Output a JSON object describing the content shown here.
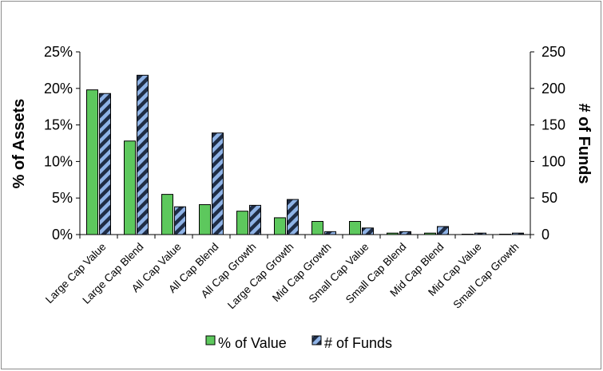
{
  "chart_data": {
    "type": "bar",
    "categories": [
      "Large Cap Value",
      "Large Cap Blend",
      "All Cap Value",
      "All Cap Blend",
      "All Cap Growth",
      "Large Cap Growth",
      "Mid Cap Growth",
      "Small Cap Value",
      "Small Cap Blend",
      "Mid Cap Blend",
      "Mid Cap Value",
      "Small Cap Growth"
    ],
    "series": [
      {
        "name": "% of Value",
        "axis": "left",
        "color": "#5dc85d",
        "values": [
          19.8,
          12.8,
          5.5,
          4.1,
          3.2,
          2.3,
          1.8,
          1.8,
          0.2,
          0.2,
          0.05,
          0.05
        ]
      },
      {
        "name": "# of Funds",
        "axis": "right",
        "pattern": "diagonal-stripes",
        "colors": [
          "#1f2d45",
          "#8fb3e6"
        ],
        "values": [
          193,
          218,
          38,
          139,
          40,
          48,
          4,
          9,
          4,
          11,
          2,
          2
        ]
      }
    ],
    "ylabel": "% of Assets",
    "y2label": "# of Funds",
    "ylim": [
      0,
      25
    ],
    "y2lim": [
      0,
      250
    ],
    "yticks": [
      "0%",
      "5%",
      "10%",
      "15%",
      "20%",
      "25%"
    ],
    "y2ticks": [
      "0",
      "50",
      "100",
      "150",
      "200",
      "250"
    ],
    "grid": false,
    "legend": "bottom"
  }
}
